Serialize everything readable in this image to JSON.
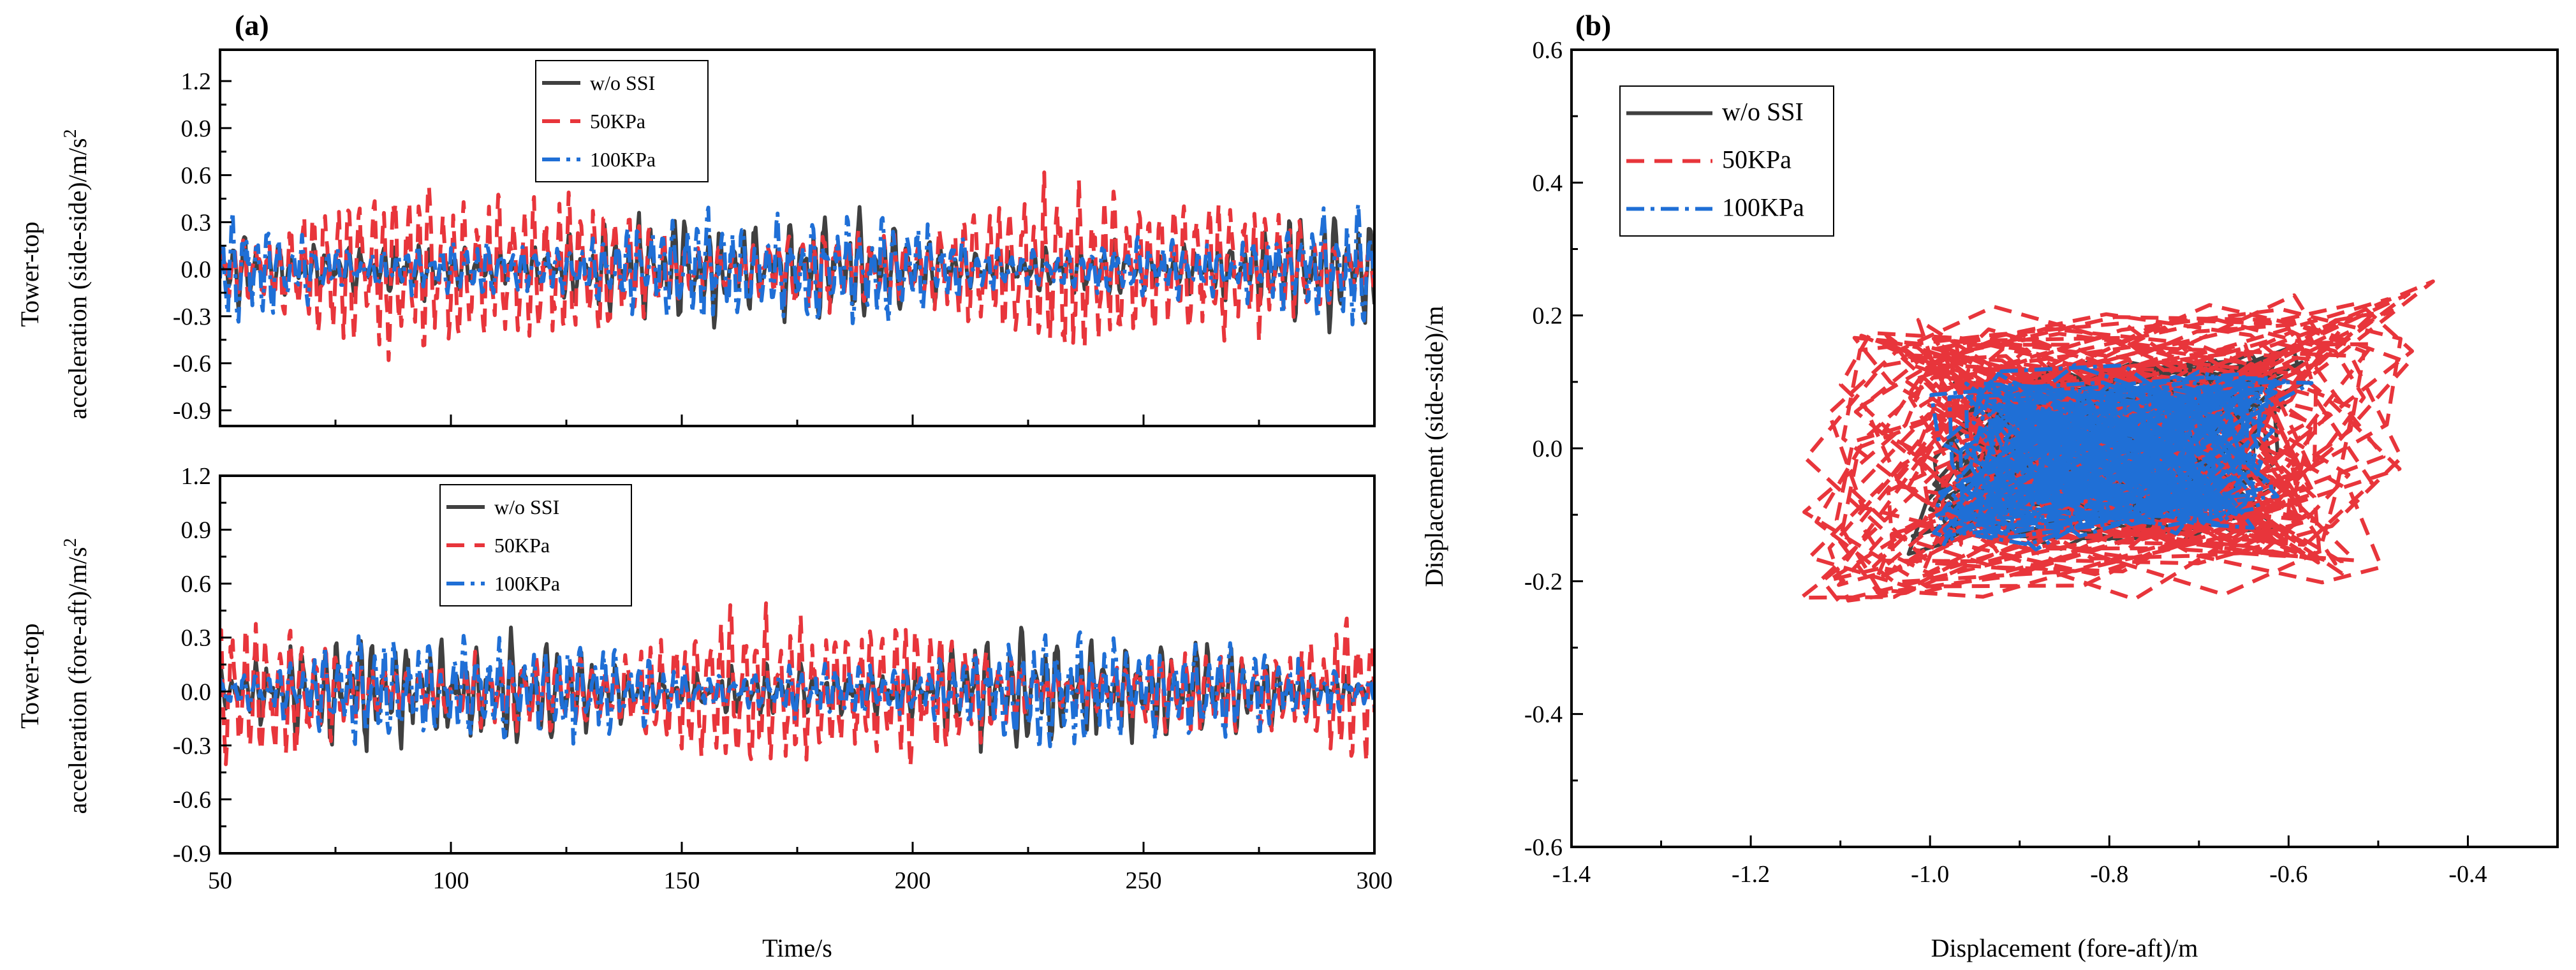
{
  "chart_data": [
    {
      "type": "line",
      "panel": "(a)",
      "subplot": "top",
      "xlabel": "",
      "ylabel_line1": "Tower-top",
      "ylabel_line2": "acceleration (side-side)/m/s",
      "ylabel_sup": "2",
      "xlim": [
        50,
        300
      ],
      "ylim": [
        -1.0,
        1.4
      ],
      "xticks": [
        50,
        100,
        150,
        200,
        250,
        300
      ],
      "yticks": [
        -0.9,
        -0.6,
        -0.3,
        0.0,
        0.3,
        0.6,
        0.9,
        1.2
      ],
      "ytick_labels": [
        "-0.9",
        "-0.6",
        "-0.3",
        "0.0",
        "0.3",
        "0.6",
        "0.9",
        "1.2"
      ],
      "series": [
        {
          "name": "w/o SSI",
          "color": "#404040",
          "dash": "solid",
          "amplitude": 0.3,
          "seed": 11
        },
        {
          "name": "50KPa",
          "color": "#e8353b",
          "dash": "dashed",
          "amplitude": 0.5,
          "seed": 23
        },
        {
          "name": "100KPa",
          "color": "#1f6fd6",
          "dash": "dashdot",
          "amplitude": 0.33,
          "seed": 37
        }
      ]
    },
    {
      "type": "line",
      "panel": "",
      "subplot": "bottom",
      "xlabel": "Time/s",
      "ylabel_line1": "Tower-top",
      "ylabel_line2": "acceleration (fore-aft)/m/s",
      "ylabel_sup": "2",
      "xlim": [
        50,
        300
      ],
      "ylim": [
        -0.9,
        1.2
      ],
      "xticks": [
        50,
        100,
        150,
        200,
        250,
        300
      ],
      "yticks": [
        -0.9,
        -0.6,
        -0.3,
        0.0,
        0.3,
        0.6,
        0.9,
        1.2
      ],
      "ytick_labels": [
        "-0.9",
        "-0.6",
        "-0.3",
        "0.0",
        "0.3",
        "0.6",
        "0.9",
        "1.2"
      ],
      "series": [
        {
          "name": "w/o SSI",
          "color": "#404040",
          "dash": "solid",
          "amplitude": 0.26,
          "seed": 51
        },
        {
          "name": "50KPa",
          "color": "#e8353b",
          "dash": "dashed",
          "amplitude": 0.42,
          "seed": 63
        },
        {
          "name": "100KPa",
          "color": "#1f6fd6",
          "dash": "dashdot",
          "amplitude": 0.28,
          "seed": 77
        }
      ]
    },
    {
      "type": "line",
      "panel": "(b)",
      "subplot": "orbit",
      "xlabel": "Displacement (fore-aft)/m",
      "ylabel": "Displacement (side-side)/m",
      "xlim": [
        -1.4,
        -0.3
      ],
      "ylim": [
        -0.6,
        0.6
      ],
      "xticks": [
        -1.4,
        -1.2,
        -1.0,
        -0.8,
        -0.6,
        -0.4
      ],
      "xtick_labels": [
        "-1.4",
        "-1.2",
        "-1.0",
        "-0.8",
        "-0.6",
        "-0.4"
      ],
      "yticks": [
        -0.6,
        -0.4,
        -0.2,
        0.0,
        0.2,
        0.4,
        0.6
      ],
      "ytick_labels": [
        "-0.6",
        "-0.4",
        "-0.2",
        "0.0",
        "0.2",
        "0.4",
        "0.6"
      ],
      "series": [
        {
          "name": "w/o SSI",
          "color": "#404040",
          "dash": "solid",
          "center": [
            -0.8,
            0.0
          ],
          "spread": [
            0.2,
            0.13
          ],
          "seed": 101
        },
        {
          "name": "50KPa",
          "color": "#e8353b",
          "dash": "dashed",
          "center": [
            -0.8,
            0.0
          ],
          "spread": [
            0.32,
            0.22
          ],
          "seed": 131
        },
        {
          "name": "100KPa",
          "color": "#1f6fd6",
          "dash": "dashdot",
          "center": [
            -0.8,
            -0.01
          ],
          "spread": [
            0.2,
            0.13
          ],
          "seed": 161
        }
      ]
    }
  ]
}
